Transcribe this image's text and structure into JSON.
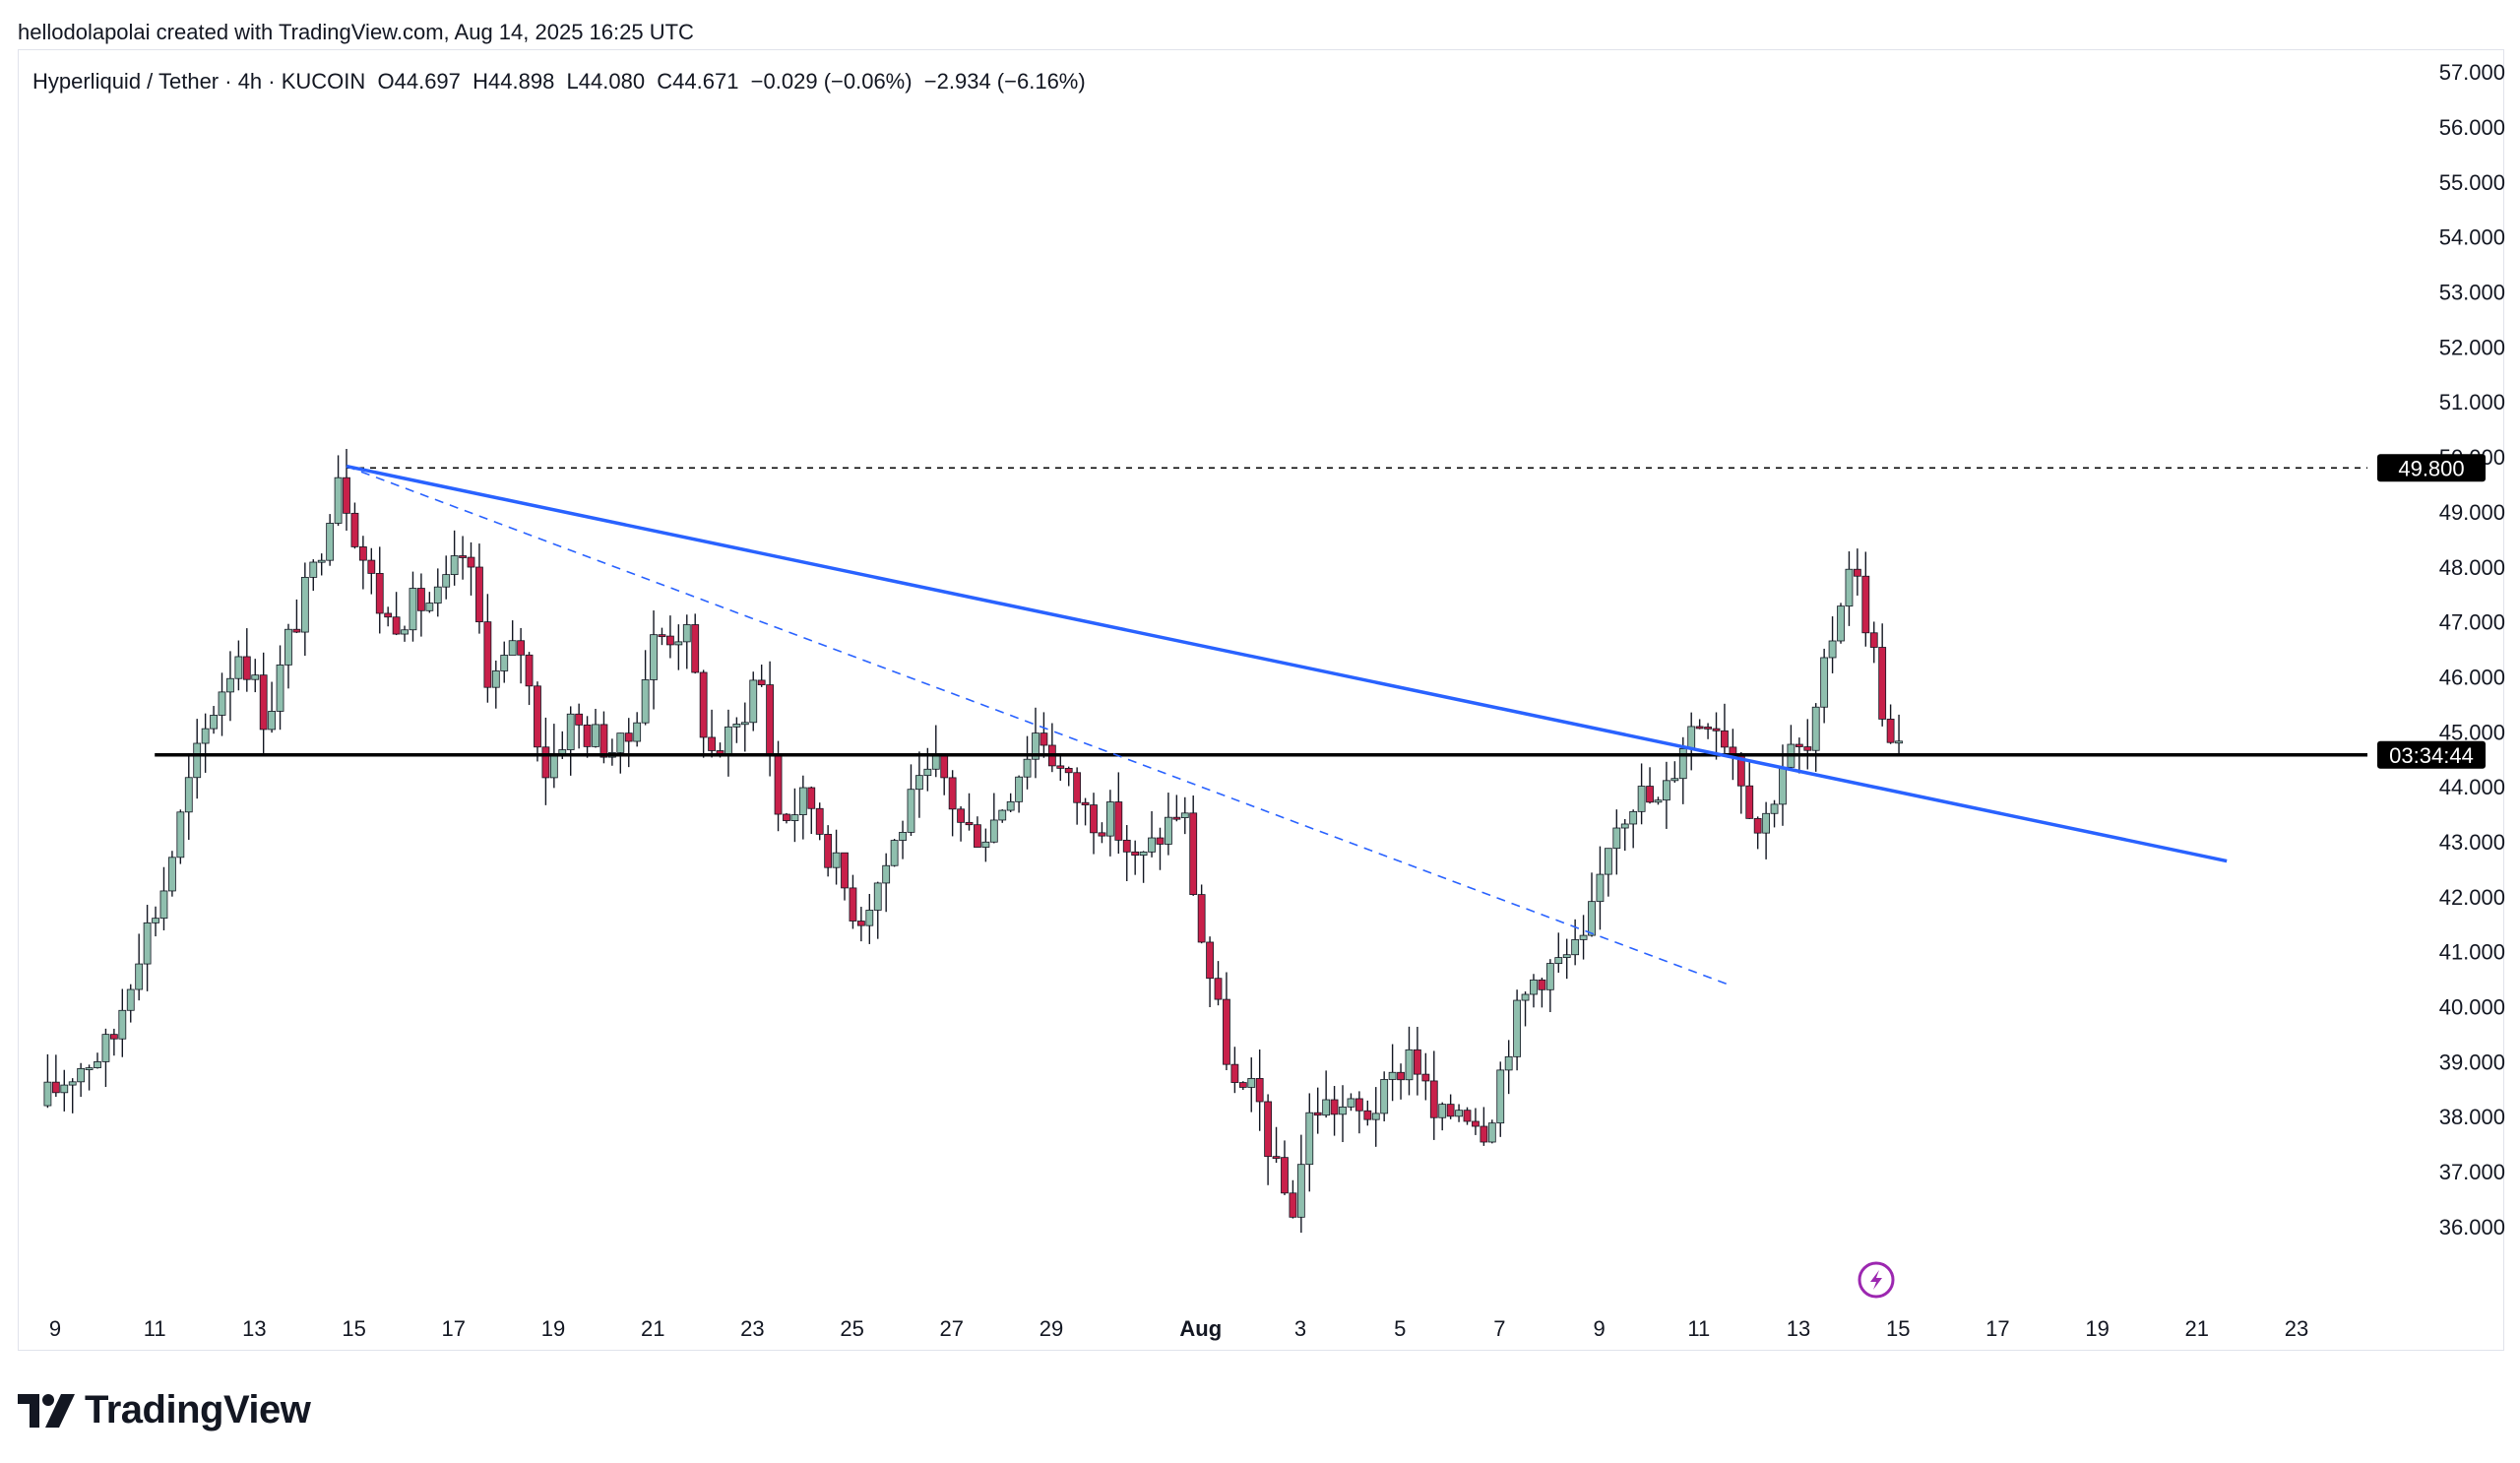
{
  "header": {
    "credit": "hellodolapolai created with TradingView.com, Aug 14, 2025 16:25 UTC"
  },
  "symbol_line": {
    "text": "Hyperliquid / Tether · 4h · KUCOIN  O44.697  H44.898  L44.080  C44.671  −0.029 (−0.06%)  −2.934 (−6.16%)"
  },
  "footer": {
    "brand": "TradingView"
  },
  "colors": {
    "up": "#8fbfae",
    "down": "#c8204a",
    "trendline": "#2962ff",
    "support": "#000000",
    "grid_border": "#e0e3eb",
    "flash_icon": "#9c27b0"
  },
  "chart_data": {
    "type": "candlestick",
    "interval": "4h",
    "ylim": [
      35.3,
      57.2
    ],
    "y_ticks": [
      "57.000",
      "56.000",
      "55.000",
      "54.000",
      "53.000",
      "52.000",
      "51.000",
      "50.000",
      "49.000",
      "48.000",
      "47.000",
      "46.000",
      "45.000",
      "44.000",
      "43.000",
      "42.000",
      "41.000",
      "40.000",
      "39.000",
      "38.000",
      "37.000",
      "36.000"
    ],
    "x_ticks": [
      "9",
      "11",
      "13",
      "15",
      "17",
      "19",
      "21",
      "23",
      "25",
      "27",
      "29",
      "Aug",
      "3",
      "5",
      "7",
      "9",
      "11",
      "13",
      "15",
      "17",
      "19",
      "21",
      "23"
    ],
    "x_tick_days": [
      8,
      10,
      12,
      14,
      16,
      18,
      20,
      22,
      24,
      26,
      28,
      31,
      33,
      35,
      37,
      39,
      41,
      43,
      45,
      47,
      49,
      51,
      53
    ],
    "price_labels": [
      {
        "text": "49.800",
        "price": 49.8
      },
      {
        "text": "03:34:44",
        "price": 44.58
      }
    ],
    "horizontal_lines": [
      {
        "name": "prior-high",
        "price": 49.8,
        "style": "dashed",
        "from_day": 13.85
      },
      {
        "name": "support",
        "price": 44.58,
        "style": "solid",
        "from_day": 10.0
      }
    ],
    "trendlines": [
      {
        "name": "main-trend",
        "style": "solid",
        "from": {
          "day": 13.85,
          "price": 49.83
        },
        "to": {
          "day": 51.6,
          "price": 42.65
        }
      },
      {
        "name": "inner-trend",
        "style": "dashed",
        "from": {
          "day": 13.85,
          "price": 49.83
        },
        "to": {
          "day": 41.6,
          "price": 40.4
        }
      }
    ],
    "anchors": [
      {
        "day": 7.85,
        "price": 38.2
      },
      {
        "day": 8.6,
        "price": 38.9
      },
      {
        "day": 9.3,
        "price": 39.3
      },
      {
        "day": 9.8,
        "price": 41.0
      },
      {
        "day": 10.3,
        "price": 42.0
      },
      {
        "day": 10.9,
        "price": 44.2
      },
      {
        "day": 11.4,
        "price": 45.6
      },
      {
        "day": 11.9,
        "price": 46.6
      },
      {
        "day": 12.4,
        "price": 45.2
      },
      {
        "day": 12.9,
        "price": 46.8
      },
      {
        "day": 13.4,
        "price": 48.0
      },
      {
        "day": 13.85,
        "price": 49.8
      },
      {
        "day": 14.3,
        "price": 48.3
      },
      {
        "day": 14.8,
        "price": 47.0
      },
      {
        "day": 15.4,
        "price": 47.3
      },
      {
        "day": 15.9,
        "price": 47.4
      },
      {
        "day": 16.4,
        "price": 48.3
      },
      {
        "day": 16.9,
        "price": 45.9
      },
      {
        "day": 17.5,
        "price": 46.6
      },
      {
        "day": 18.0,
        "price": 44.3
      },
      {
        "day": 18.5,
        "price": 45.2
      },
      {
        "day": 19.0,
        "price": 44.9
      },
      {
        "day": 19.6,
        "price": 44.6
      },
      {
        "day": 20.2,
        "price": 46.7
      },
      {
        "day": 20.8,
        "price": 46.9
      },
      {
        "day": 21.3,
        "price": 44.6
      },
      {
        "day": 21.8,
        "price": 44.9
      },
      {
        "day": 22.3,
        "price": 46.2
      },
      {
        "day": 22.7,
        "price": 43.4
      },
      {
        "day": 23.3,
        "price": 43.8
      },
      {
        "day": 23.8,
        "price": 42.6
      },
      {
        "day": 24.3,
        "price": 41.6
      },
      {
        "day": 24.8,
        "price": 42.5
      },
      {
        "day": 25.3,
        "price": 43.6
      },
      {
        "day": 25.9,
        "price": 44.4
      },
      {
        "day": 26.4,
        "price": 43.2
      },
      {
        "day": 26.9,
        "price": 43.2
      },
      {
        "day": 27.4,
        "price": 44.1
      },
      {
        "day": 27.9,
        "price": 45.1
      },
      {
        "day": 28.4,
        "price": 44.2
      },
      {
        "day": 28.9,
        "price": 43.5
      },
      {
        "day": 29.4,
        "price": 43.4
      },
      {
        "day": 29.9,
        "price": 42.5
      },
      {
        "day": 30.4,
        "price": 43.2
      },
      {
        "day": 30.8,
        "price": 43.7
      },
      {
        "day": 31.1,
        "price": 41.6
      },
      {
        "day": 31.5,
        "price": 39.9
      },
      {
        "day": 31.9,
        "price": 38.3
      },
      {
        "day": 32.3,
        "price": 38.4
      },
      {
        "day": 32.65,
        "price": 37.0
      },
      {
        "day": 33.0,
        "price": 36.3
      },
      {
        "day": 33.4,
        "price": 38.2
      },
      {
        "day": 33.9,
        "price": 38.2
      },
      {
        "day": 34.4,
        "price": 38.0
      },
      {
        "day": 34.9,
        "price": 38.4
      },
      {
        "day": 35.4,
        "price": 39.3
      },
      {
        "day": 35.9,
        "price": 37.8
      },
      {
        "day": 36.4,
        "price": 38.3
      },
      {
        "day": 36.9,
        "price": 37.8
      },
      {
        "day": 37.4,
        "price": 39.6
      },
      {
        "day": 37.9,
        "price": 40.6
      },
      {
        "day": 38.4,
        "price": 40.8
      },
      {
        "day": 38.9,
        "price": 41.1
      },
      {
        "day": 39.4,
        "price": 43.3
      },
      {
        "day": 39.9,
        "price": 43.9
      },
      {
        "day": 40.4,
        "price": 43.6
      },
      {
        "day": 40.9,
        "price": 45.0
      },
      {
        "day": 41.4,
        "price": 45.4
      },
      {
        "day": 41.9,
        "price": 44.6
      },
      {
        "day": 42.4,
        "price": 43.1
      },
      {
        "day": 42.9,
        "price": 44.6
      },
      {
        "day": 43.4,
        "price": 44.6
      },
      {
        "day": 43.8,
        "price": 46.6
      },
      {
        "day": 44.2,
        "price": 48.2
      },
      {
        "day": 44.6,
        "price": 46.8
      },
      {
        "day": 45.0,
        "price": 44.7
      },
      {
        "day": 45.15,
        "price": 44.67
      }
    ]
  }
}
